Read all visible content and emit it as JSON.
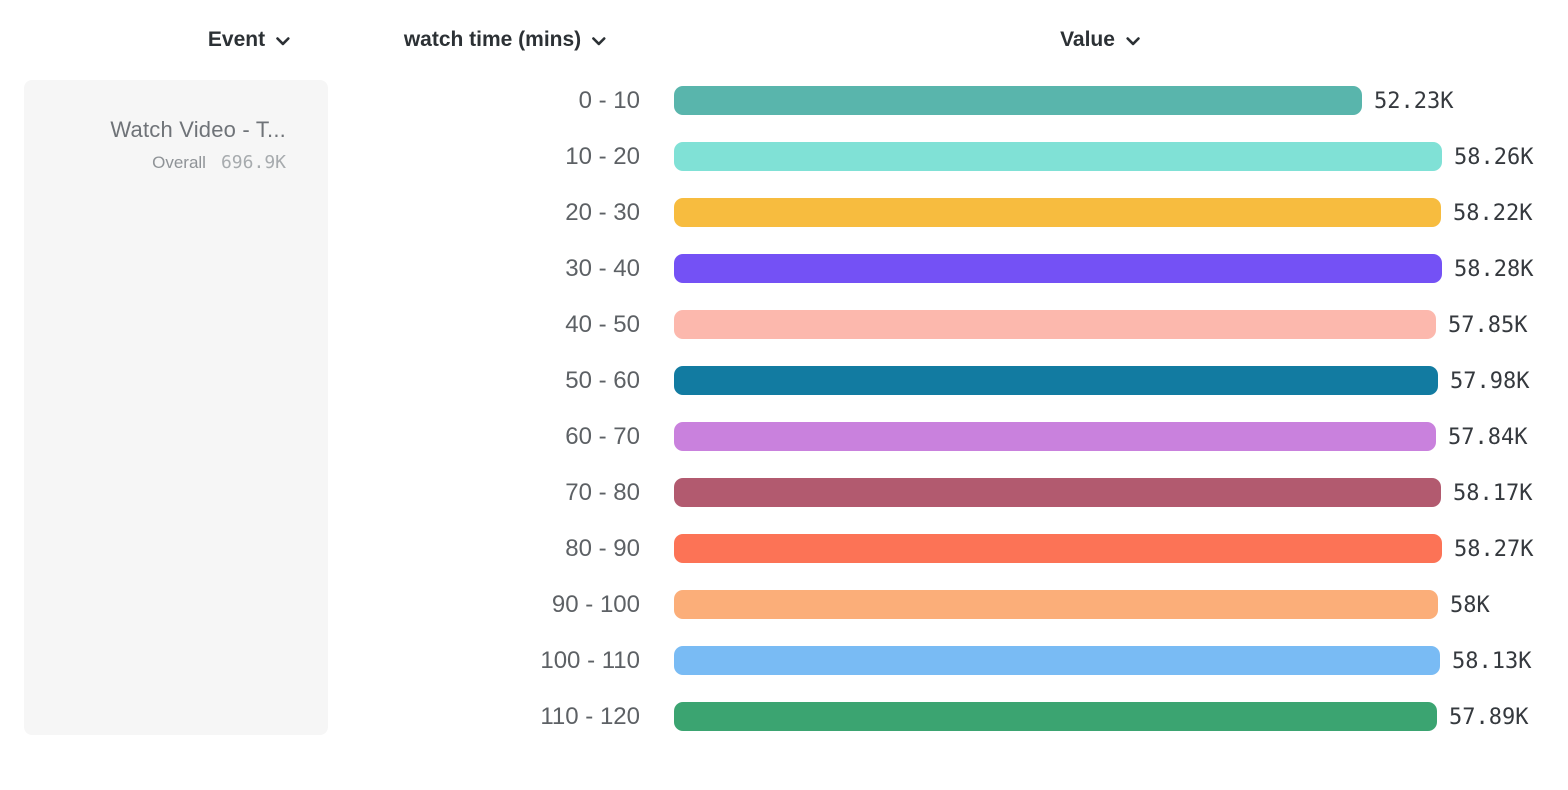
{
  "header": {
    "columns": [
      {
        "id": "event",
        "label": "Event"
      },
      {
        "id": "bucket",
        "label": "watch time (mins)"
      },
      {
        "id": "value",
        "label": "Value"
      }
    ]
  },
  "event_card": {
    "title": "Watch Video - T...",
    "overall_label": "Overall",
    "overall_value": "696.9K"
  },
  "chart_data": {
    "type": "bar",
    "orientation": "horizontal",
    "title": "",
    "xlabel": "Value",
    "ylabel": "watch time (mins)",
    "xlim": [
      0,
      58280
    ],
    "grid": false,
    "legend": false,
    "categories": [
      "0 - 10",
      "10 - 20",
      "20 - 30",
      "30 - 40",
      "40 - 50",
      "50 - 60",
      "60 - 70",
      "70 - 80",
      "80 - 90",
      "90 - 100",
      "100 - 110",
      "110 - 120"
    ],
    "series": [
      {
        "name": "Value",
        "values": [
          52230,
          58260,
          58220,
          58280,
          57850,
          57980,
          57840,
          58170,
          58270,
          58000,
          58130,
          57890
        ]
      }
    ],
    "value_labels": [
      "52.23K",
      "58.26K",
      "58.22K",
      "58.28K",
      "57.85K",
      "57.98K",
      "57.84K",
      "58.17K",
      "58.27K",
      "58K",
      "58.13K",
      "57.89K"
    ],
    "bar_colors": [
      "#59b5ac",
      "#80e1d6",
      "#f7bc3f",
      "#7451f5",
      "#fcb8ad",
      "#127ba1",
      "#c981dd",
      "#b25a6f",
      "#fc7356",
      "#fbae79",
      "#79bbf4",
      "#3ba471"
    ]
  },
  "icons": {
    "chevron_color": "#2c3135"
  }
}
